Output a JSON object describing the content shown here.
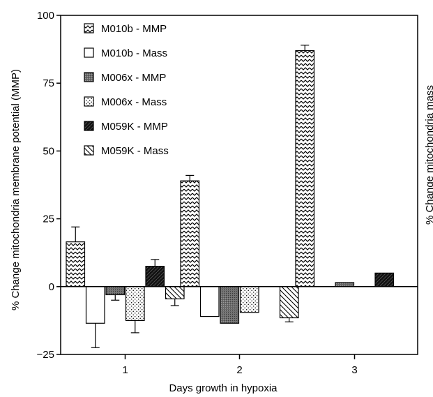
{
  "chart_data": {
    "type": "bar",
    "categories": [
      "1",
      "2",
      "3"
    ],
    "xlabel": "Days growth in hypoxia",
    "ylabel": "% Change mitochondria membrane potential (MMP)",
    "y2label": "% Change mitochondria mass",
    "ylim": [
      -25,
      100
    ],
    "yticks": [
      -25,
      0,
      25,
      50,
      75,
      100
    ],
    "ytick_labels": [
      "−25",
      "0",
      "25",
      "50",
      "75",
      "100"
    ],
    "grid": false,
    "legend_position": "top-left",
    "series": [
      {
        "name": "M010b - MMP",
        "pattern": "zigzag",
        "values": [
          16.5,
          39,
          87
        ],
        "errors": [
          5.5,
          2,
          2
        ]
      },
      {
        "name": "M010b - Mass",
        "pattern": "white",
        "values": [
          -13.5,
          -11,
          0
        ],
        "errors": [
          9,
          null,
          null
        ]
      },
      {
        "name": "M006x - MMP",
        "pattern": "gray",
        "values": [
          -3,
          -13.5,
          1.5
        ],
        "errors": [
          2,
          null,
          null
        ]
      },
      {
        "name": "M006x - Mass",
        "pattern": "dots",
        "values": [
          -12.5,
          -9.5,
          0
        ],
        "errors": [
          4.5,
          null,
          null
        ]
      },
      {
        "name": "M059K - MMP",
        "pattern": "black",
        "values": [
          7.5,
          0,
          5
        ],
        "errors": [
          2.5,
          null,
          null
        ]
      },
      {
        "name": "M059K - Mass",
        "pattern": "hatch",
        "values": [
          -4.5,
          -11.5,
          0
        ],
        "errors": [
          2.5,
          1.5,
          null
        ]
      }
    ]
  }
}
